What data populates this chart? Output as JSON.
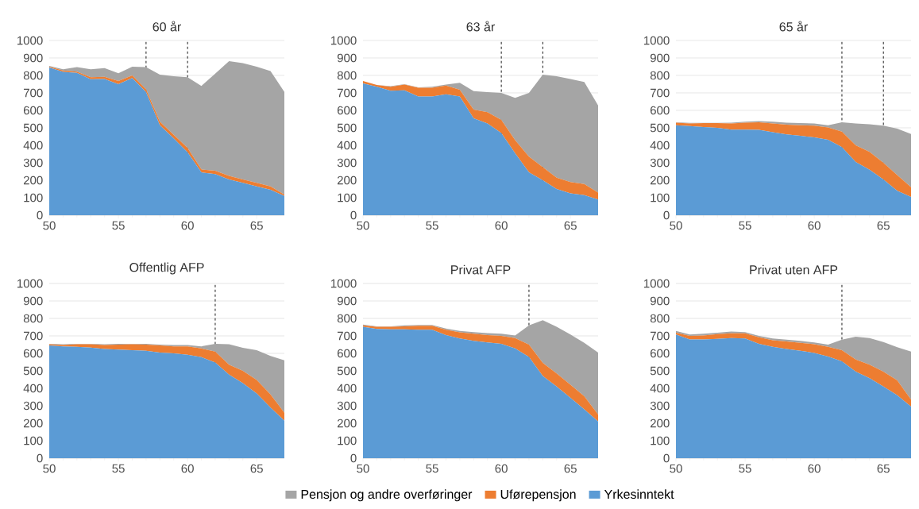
{
  "chart_data": [
    {
      "type": "area",
      "stacked": true,
      "title": "60 år",
      "x": [
        50,
        51,
        52,
        53,
        54,
        55,
        56,
        57,
        58,
        59,
        60,
        61,
        62,
        63,
        64,
        65,
        66,
        67
      ],
      "xlim": [
        50,
        67
      ],
      "xticks": [
        50,
        55,
        60,
        65
      ],
      "ylim": [
        0,
        1000
      ],
      "yticks": [
        0,
        100,
        200,
        300,
        400,
        500,
        600,
        700,
        800,
        900,
        1000
      ],
      "grid": "y",
      "legend": false,
      "ref_lines": [
        {
          "axis": "x",
          "value": 57,
          "color": "#000000",
          "line_style": "dashed"
        },
        {
          "axis": "x",
          "value": 60,
          "color": "#000000",
          "line_style": "dashed"
        }
      ],
      "series": [
        {
          "color": "#5b9bd5",
          "values": [
            845,
            820,
            815,
            778,
            780,
            750,
            785,
            705,
            515,
            440,
            360,
            245,
            235,
            205,
            185,
            165,
            145,
            110
          ]
        },
        {
          "color": "#ed7d31",
          "values": [
            5,
            8,
            7,
            12,
            12,
            18,
            15,
            15,
            20,
            20,
            25,
            17,
            20,
            20,
            20,
            20,
            20,
            8
          ]
        },
        {
          "color": "#a5a5a5",
          "values": [
            5,
            7,
            26,
            45,
            50,
            44,
            50,
            128,
            270,
            335,
            405,
            478,
            555,
            657,
            665,
            665,
            660,
            587
          ]
        }
      ]
    },
    {
      "type": "area",
      "stacked": true,
      "title": "63 år",
      "x": [
        50,
        51,
        52,
        53,
        54,
        55,
        56,
        57,
        58,
        59,
        60,
        61,
        62,
        63,
        64,
        65,
        66,
        67
      ],
      "xlim": [
        50,
        67
      ],
      "xticks": [
        50,
        55,
        60,
        65
      ],
      "ylim": [
        0,
        1000
      ],
      "yticks": [
        0,
        100,
        200,
        300,
        400,
        500,
        600,
        700,
        800,
        900,
        1000
      ],
      "grid": "y",
      "legend": false,
      "ref_lines": [
        {
          "axis": "x",
          "value": 60,
          "color": "#000000",
          "line_style": "dashed"
        },
        {
          "axis": "x",
          "value": 63,
          "color": "#000000",
          "line_style": "dashed"
        }
      ],
      "series": [
        {
          "color": "#5b9bd5",
          "values": [
            755,
            735,
            712,
            715,
            680,
            680,
            692,
            680,
            555,
            525,
            470,
            355,
            245,
            200,
            150,
            125,
            115,
            90
          ]
        },
        {
          "color": "#ed7d31",
          "values": [
            13,
            10,
            23,
            33,
            50,
            50,
            50,
            38,
            50,
            65,
            75,
            75,
            90,
            75,
            65,
            65,
            63,
            40
          ]
        },
        {
          "color": "#a5a5a5",
          "values": [
            0,
            0,
            3,
            2,
            2,
            5,
            6,
            40,
            105,
            115,
            155,
            242,
            365,
            530,
            580,
            590,
            584,
            498
          ]
        }
      ]
    },
    {
      "type": "area",
      "stacked": true,
      "title": "65 år",
      "x": [
        50,
        51,
        52,
        53,
        54,
        55,
        56,
        57,
        58,
        59,
        60,
        61,
        62,
        63,
        64,
        65,
        66,
        67
      ],
      "xlim": [
        50,
        67
      ],
      "xticks": [
        50,
        55,
        60,
        65
      ],
      "ylim": [
        0,
        1000
      ],
      "yticks": [
        0,
        100,
        200,
        300,
        400,
        500,
        600,
        700,
        800,
        900,
        1000
      ],
      "grid": "y",
      "legend": false,
      "ref_lines": [
        {
          "axis": "x",
          "value": 62,
          "color": "#000000",
          "line_style": "dashed"
        },
        {
          "axis": "x",
          "value": 65,
          "color": "#000000",
          "line_style": "dashed"
        }
      ],
      "series": [
        {
          "color": "#5b9bd5",
          "values": [
            515,
            510,
            505,
            500,
            490,
            490,
            488,
            475,
            462,
            455,
            445,
            432,
            390,
            305,
            260,
            205,
            140,
            105
          ]
        },
        {
          "color": "#ed7d31",
          "values": [
            15,
            15,
            22,
            27,
            35,
            40,
            44,
            50,
            56,
            60,
            67,
            70,
            88,
            95,
            102,
            95,
            90,
            55
          ]
        },
        {
          "color": "#a5a5a5",
          "values": [
            2,
            3,
            1,
            1,
            5,
            5,
            6,
            10,
            12,
            12,
            13,
            13,
            54,
            125,
            158,
            212,
            265,
            305
          ]
        }
      ]
    },
    {
      "type": "area",
      "stacked": true,
      "title": "Offentlig AFP",
      "x": [
        50,
        51,
        52,
        53,
        54,
        55,
        56,
        57,
        58,
        59,
        60,
        61,
        62,
        63,
        64,
        65,
        66,
        67
      ],
      "xlim": [
        50,
        67
      ],
      "xticks": [
        50,
        55,
        60,
        65
      ],
      "ylim": [
        0,
        1000
      ],
      "yticks": [
        0,
        100,
        200,
        300,
        400,
        500,
        600,
        700,
        800,
        900,
        1000
      ],
      "grid": "y",
      "legend": false,
      "ref_lines": [
        {
          "axis": "x",
          "value": 62,
          "color": "#000000",
          "line_style": "dashed"
        }
      ],
      "series": [
        {
          "color": "#5b9bd5",
          "values": [
            645,
            640,
            638,
            633,
            625,
            622,
            618,
            615,
            605,
            600,
            592,
            578,
            548,
            478,
            430,
            370,
            290,
            215
          ]
        },
        {
          "color": "#ed7d31",
          "values": [
            7,
            8,
            14,
            19,
            23,
            28,
            34,
            35,
            40,
            40,
            48,
            50,
            62,
            57,
            70,
            78,
            75,
            45
          ]
        },
        {
          "color": "#a5a5a5",
          "values": [
            3,
            4,
            3,
            3,
            4,
            5,
            3,
            5,
            5,
            8,
            8,
            12,
            45,
            117,
            132,
            170,
            220,
            300
          ]
        }
      ]
    },
    {
      "type": "area",
      "stacked": true,
      "title": "Privat AFP",
      "x": [
        50,
        51,
        52,
        53,
        54,
        55,
        56,
        57,
        58,
        59,
        60,
        61,
        62,
        63,
        64,
        65,
        66,
        67
      ],
      "xlim": [
        50,
        67
      ],
      "xticks": [
        50,
        55,
        60,
        65
      ],
      "ylim": [
        0,
        1000
      ],
      "yticks": [
        0,
        100,
        200,
        300,
        400,
        500,
        600,
        700,
        800,
        900,
        1000
      ],
      "grid": "y",
      "legend": "bottom",
      "ref_lines": [
        {
          "axis": "x",
          "value": 62,
          "color": "#000000",
          "line_style": "dashed"
        }
      ],
      "series": [
        {
          "name": "Yrkesinntekt",
          "color": "#5b9bd5",
          "values": [
            752,
            740,
            738,
            738,
            735,
            735,
            705,
            685,
            672,
            662,
            655,
            628,
            580,
            470,
            410,
            345,
            280,
            210
          ]
        },
        {
          "name": "Uførepensjon",
          "color": "#ed7d31",
          "values": [
            8,
            12,
            14,
            17,
            23,
            23,
            30,
            35,
            40,
            43,
            45,
            60,
            70,
            75,
            75,
            75,
            75,
            40
          ]
        },
        {
          "name": "Pensjon og andre overføringer",
          "color": "#a5a5a5",
          "values": [
            5,
            3,
            3,
            5,
            4,
            4,
            7,
            8,
            10,
            11,
            12,
            14,
            110,
            245,
            267,
            288,
            305,
            355
          ]
        }
      ]
    },
    {
      "type": "area",
      "stacked": true,
      "title": "Privat uten AFP",
      "x": [
        50,
        51,
        52,
        53,
        54,
        55,
        56,
        57,
        58,
        59,
        60,
        61,
        62,
        63,
        64,
        65,
        66,
        67
      ],
      "xlim": [
        50,
        67
      ],
      "xticks": [
        50,
        55,
        60,
        65
      ],
      "ylim": [
        0,
        1000
      ],
      "yticks": [
        0,
        100,
        200,
        300,
        400,
        500,
        600,
        700,
        800,
        900,
        1000
      ],
      "grid": "y",
      "legend": false,
      "ref_lines": [
        {
          "axis": "x",
          "value": 62,
          "color": "#000000",
          "line_style": "dashed"
        }
      ],
      "series": [
        {
          "color": "#5b9bd5",
          "values": [
            708,
            680,
            680,
            683,
            688,
            685,
            655,
            638,
            625,
            615,
            602,
            582,
            555,
            495,
            458,
            410,
            360,
            295
          ]
        },
        {
          "color": "#ed7d31",
          "values": [
            10,
            20,
            22,
            27,
            27,
            30,
            37,
            37,
            43,
            45,
            50,
            56,
            63,
            70,
            77,
            85,
            85,
            40
          ]
        },
        {
          "color": "#a5a5a5",
          "values": [
            10,
            8,
            10,
            8,
            10,
            7,
            8,
            10,
            10,
            12,
            10,
            12,
            60,
            130,
            153,
            170,
            190,
            275
          ]
        }
      ]
    }
  ]
}
